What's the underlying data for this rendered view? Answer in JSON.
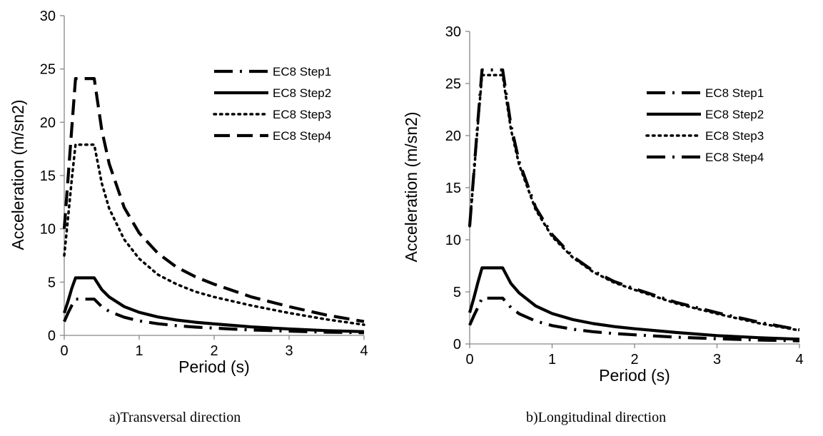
{
  "chart_data": [
    {
      "type": "line",
      "caption": "a)Transversal direction",
      "xlabel": "Period (s)",
      "ylabel": "Acceleration (m/sn2)",
      "xlim": [
        0,
        4
      ],
      "ylim": [
        0,
        30
      ],
      "xticks": [
        "0",
        "1",
        "2",
        "3",
        "4"
      ],
      "yticks": [
        "0",
        "5",
        "10",
        "15",
        "20",
        "25",
        "30"
      ],
      "grid": false,
      "legend_position": "right",
      "x": [
        0,
        0.05,
        0.1,
        0.15,
        0.4,
        0.5,
        0.6,
        0.8,
        1.0,
        1.25,
        1.5,
        1.75,
        2.0,
        2.5,
        3.0,
        3.5,
        4.0
      ],
      "series": [
        {
          "name": "EC8 Step1",
          "dash": "longdashdot",
          "color": "#000000",
          "values": [
            1.3,
            2.1,
            2.8,
            3.4,
            3.4,
            2.7,
            2.25,
            1.7,
            1.36,
            1.09,
            0.91,
            0.78,
            0.68,
            0.5,
            0.4,
            0.3,
            0.25
          ]
        },
        {
          "name": "EC8 Step2",
          "dash": "solid",
          "color": "#000000",
          "values": [
            2.1,
            3.2,
            4.4,
            5.4,
            5.4,
            4.3,
            3.6,
            2.7,
            2.16,
            1.73,
            1.44,
            1.23,
            1.08,
            0.8,
            0.6,
            0.45,
            0.35
          ]
        },
        {
          "name": "EC8 Step3",
          "dash": "dotted",
          "color": "#000000",
          "values": [
            7.5,
            11.0,
            14.6,
            17.9,
            17.9,
            14.3,
            11.9,
            9.0,
            7.2,
            5.7,
            4.8,
            4.1,
            3.6,
            2.8,
            2.1,
            1.5,
            1.0
          ]
        },
        {
          "name": "EC8 Step4",
          "dash": "dashed",
          "color": "#000000",
          "values": [
            10.0,
            14.7,
            19.4,
            24.1,
            24.1,
            19.3,
            16.1,
            12.0,
            9.6,
            7.7,
            6.4,
            5.5,
            4.8,
            3.6,
            2.7,
            1.9,
            1.3
          ]
        }
      ]
    },
    {
      "type": "line",
      "caption": "b)Longitudinal direction",
      "xlabel": "Period (s)",
      "ylabel": "Acceleration (m/sn2)",
      "xlim": [
        0,
        4
      ],
      "ylim": [
        0,
        30
      ],
      "xticks": [
        "0",
        "1",
        "2",
        "3",
        "4"
      ],
      "yticks": [
        "0",
        "5",
        "10",
        "15",
        "20",
        "25",
        "30"
      ],
      "grid": false,
      "legend_position": "right",
      "x": [
        0,
        0.05,
        0.1,
        0.15,
        0.4,
        0.5,
        0.6,
        0.8,
        1.0,
        1.25,
        1.5,
        1.75,
        2.0,
        2.5,
        3.0,
        3.5,
        4.0
      ],
      "series": [
        {
          "name": "EC8 Step1",
          "dash": "longdashdot",
          "color": "#000000",
          "values": [
            1.8,
            2.7,
            3.5,
            4.4,
            4.4,
            3.5,
            2.9,
            2.2,
            1.76,
            1.41,
            1.17,
            1.0,
            0.88,
            0.65,
            0.5,
            0.38,
            0.3
          ]
        },
        {
          "name": "EC8 Step2",
          "dash": "solid",
          "color": "#000000",
          "values": [
            3.0,
            4.4,
            5.9,
            7.3,
            7.3,
            5.8,
            4.9,
            3.65,
            2.92,
            2.34,
            1.95,
            1.67,
            1.46,
            1.1,
            0.8,
            0.6,
            0.45
          ]
        },
        {
          "name": "EC8 Step3",
          "dash": "dotted",
          "color": "#000000",
          "values": [
            11.3,
            16.2,
            21.1,
            25.8,
            25.8,
            20.6,
            17.2,
            12.9,
            10.3,
            8.3,
            6.9,
            5.9,
            5.2,
            3.9,
            2.9,
            2.0,
            1.3
          ]
        },
        {
          "name": "EC8 Step4",
          "dash": "longdashdot",
          "color": "#000000",
          "values": [
            11.3,
            16.4,
            21.4,
            26.3,
            26.3,
            21.0,
            17.5,
            13.1,
            10.5,
            8.4,
            7.0,
            6.0,
            5.3,
            4.0,
            3.0,
            2.1,
            1.35
          ]
        }
      ]
    }
  ]
}
